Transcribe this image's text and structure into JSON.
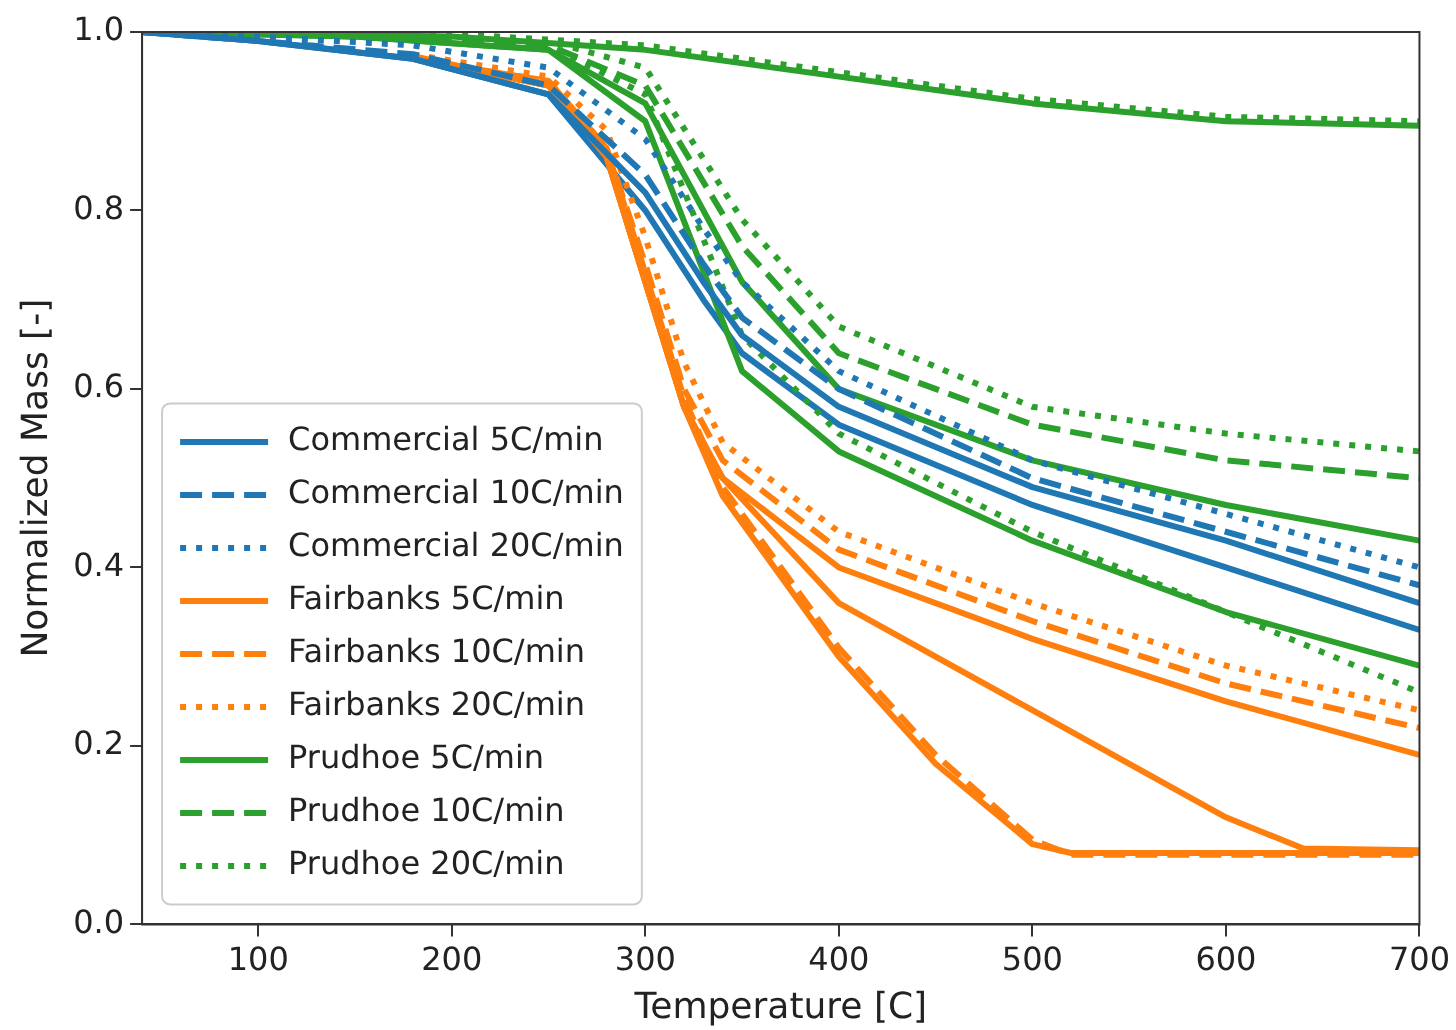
{
  "chart_data": {
    "type": "line",
    "xlabel": "Temperature [C]",
    "ylabel": "Normalized Mass [-]",
    "xlim": [
      40,
      700
    ],
    "xticks": [
      100,
      200,
      300,
      400,
      500,
      600,
      700
    ],
    "ylim": [
      0,
      1
    ],
    "yticks": [
      {
        "value": 0,
        "label": "0.0"
      },
      0.2,
      0.4,
      0.6,
      0.8,
      {
        "value": 1,
        "label": "1.0"
      }
    ],
    "grid": false,
    "legend": "bottom left",
    "marker": "none",
    "series": [
      {
        "name": "Commercial 5C/min",
        "color": "#1f77b4",
        "line_style": "solid",
        "x": [
          40,
          100,
          180,
          250,
          300,
          330,
          350,
          400,
          500,
          600,
          700
        ],
        "values": [
          1,
          0.99,
          0.97,
          0.93,
          0.82,
          0.72,
          0.66,
          0.58,
          0.49,
          0.43,
          0.36
        ]
      },
      {
        "name": "Commercial 10C/min",
        "color": "#1f77b4",
        "line_style": "dashed",
        "x": [
          40,
          100,
          180,
          250,
          300,
          330,
          350,
          400,
          500,
          600,
          700
        ],
        "values": [
          1,
          0.99,
          0.975,
          0.94,
          0.84,
          0.74,
          0.68,
          0.6,
          0.5,
          0.44,
          0.38
        ]
      },
      {
        "name": "Commercial 20C/min",
        "color": "#1f77b4",
        "line_style": "dotted",
        "x": [
          40,
          100,
          180,
          250,
          300,
          330,
          350,
          400,
          500,
          600,
          700
        ],
        "values": [
          1,
          0.995,
          0.985,
          0.96,
          0.88,
          0.78,
          0.72,
          0.62,
          0.52,
          0.46,
          0.4
        ]
      },
      {
        "name": "Fairbanks 5C/min",
        "color": "#ff7f0e",
        "line_style": "solid",
        "x": [
          180,
          250,
          280,
          300,
          320,
          340,
          400,
          500,
          600,
          700
        ],
        "values": [
          0.97,
          0.94,
          0.86,
          0.72,
          0.58,
          0.5,
          0.4,
          0.32,
          0.25,
          0.19
        ]
      },
      {
        "name": "Fairbanks 10C/min",
        "color": "#ff7f0e",
        "line_style": "dashed",
        "x": [
          180,
          250,
          280,
          300,
          320,
          340,
          400,
          500,
          600,
          700
        ],
        "values": [
          0.97,
          0.945,
          0.87,
          0.74,
          0.6,
          0.52,
          0.42,
          0.34,
          0.27,
          0.22
        ]
      },
      {
        "name": "Fairbanks 20C/min",
        "color": "#ff7f0e",
        "line_style": "dotted",
        "x": [
          180,
          250,
          280,
          300,
          320,
          340,
          400,
          500,
          600,
          700
        ],
        "values": [
          0.975,
          0.95,
          0.89,
          0.77,
          0.63,
          0.54,
          0.44,
          0.36,
          0.29,
          0.24
        ]
      },
      {
        "name": "Prudhoe 5C/min",
        "color": "#2ca02c",
        "line_style": "solid",
        "x": [
          40,
          150,
          250,
          300,
          350,
          400,
          500,
          600,
          700
        ],
        "values": [
          1,
          0.995,
          0.98,
          0.92,
          0.72,
          0.6,
          0.52,
          0.47,
          0.43
        ]
      },
      {
        "name": "Prudhoe 10C/min",
        "color": "#2ca02c",
        "line_style": "dashed",
        "x": [
          40,
          150,
          250,
          300,
          350,
          400,
          500,
          600,
          700
        ],
        "values": [
          1,
          0.995,
          0.985,
          0.94,
          0.76,
          0.64,
          0.56,
          0.52,
          0.5
        ]
      },
      {
        "name": "Prudhoe 20C/min",
        "color": "#2ca02c",
        "line_style": "dotted",
        "x": [
          40,
          150,
          250,
          300,
          350,
          400,
          500,
          600,
          700
        ],
        "values": [
          1,
          0.998,
          0.99,
          0.96,
          0.79,
          0.67,
          0.58,
          0.55,
          0.53
        ]
      },
      {
        "color": "#2ca02c",
        "line_style": "solid",
        "x": [
          40,
          200,
          300,
          400,
          500,
          600,
          700
        ],
        "values": [
          1,
          0.995,
          0.98,
          0.95,
          0.92,
          0.9,
          0.895
        ]
      },
      {
        "color": "#2ca02c",
        "line_style": "dotted",
        "x": [
          40,
          200,
          300,
          400,
          500,
          600,
          700
        ],
        "values": [
          1,
          0.998,
          0.985,
          0.955,
          0.925,
          0.905,
          0.9
        ]
      },
      {
        "color": "#2ca02c",
        "line_style": "solid",
        "x": [
          40,
          150,
          250,
          300,
          350,
          400,
          500,
          600,
          700
        ],
        "values": [
          1,
          0.995,
          0.98,
          0.9,
          0.62,
          0.53,
          0.43,
          0.35,
          0.29
        ]
      },
      {
        "color": "#2ca02c",
        "line_style": "dotted",
        "x": [
          40,
          150,
          250,
          300,
          350,
          400,
          500,
          600,
          700
        ],
        "values": [
          1,
          0.998,
          0.985,
          0.93,
          0.66,
          0.55,
          0.44,
          0.35,
          0.26
        ]
      },
      {
        "color": "#ff7f0e",
        "line_style": "solid",
        "x": [
          180,
          250,
          280,
          300,
          320,
          340,
          400,
          450,
          500,
          520,
          700
        ],
        "values": [
          0.97,
          0.94,
          0.86,
          0.72,
          0.58,
          0.48,
          0.3,
          0.18,
          0.09,
          0.08,
          0.08
        ]
      },
      {
        "color": "#ff7f0e",
        "line_style": "dashed",
        "x": [
          185,
          250,
          280,
          300,
          320,
          340,
          400,
          450,
          500,
          520,
          700
        ],
        "values": [
          0.968,
          0.945,
          0.87,
          0.73,
          0.59,
          0.49,
          0.31,
          0.19,
          0.095,
          0.078,
          0.078
        ]
      },
      {
        "color": "#ff7f0e",
        "line_style": "solid",
        "x": [
          182,
          250,
          280,
          300,
          320,
          340,
          400,
          500,
          600,
          640,
          700
        ],
        "values": [
          0.972,
          0.94,
          0.86,
          0.72,
          0.58,
          0.5,
          0.36,
          0.24,
          0.12,
          0.085,
          0.083
        ]
      },
      {
        "color": "#1f77b4",
        "line_style": "solid",
        "x": [
          40,
          100,
          180,
          250,
          300,
          330,
          350,
          400,
          500,
          600,
          700
        ],
        "values": [
          1,
          0.99,
          0.97,
          0.93,
          0.8,
          0.7,
          0.64,
          0.56,
          0.47,
          0.4,
          0.33
        ]
      }
    ]
  }
}
